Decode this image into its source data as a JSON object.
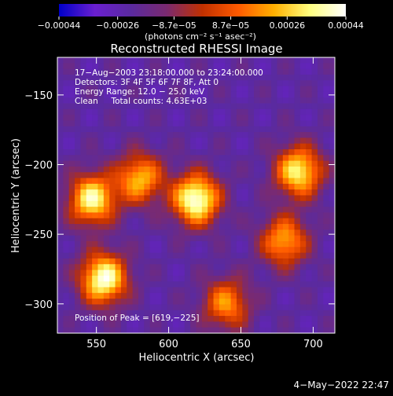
{
  "chart_data": {
    "type": "heatmap",
    "title": "Reconstructed RHESSI Image",
    "xlabel": "Heliocentric X (arcsec)",
    "ylabel": "Heliocentric Y (arcsec)",
    "xlim": [
      523,
      715
    ],
    "ylim": [
      -321,
      -123
    ],
    "x_ticks": [
      550,
      600,
      650,
      700
    ],
    "x_tick_labels": [
      "550",
      "600",
      "650",
      "700"
    ],
    "y_ticks": [
      -150,
      -200,
      -250,
      -300
    ],
    "y_tick_labels": [
      "−150",
      "−200",
      "−250",
      "−300"
    ],
    "colorbar": {
      "min": -0.00044,
      "max": 0.00044,
      "ticks": [
        -0.00044,
        -0.00026,
        -8.7e-05,
        8.7e-05,
        0.00026,
        0.00044
      ],
      "tick_labels": [
        "−0.00044",
        "−0.00026",
        "−8.7e−05",
        "8.7e−05",
        "0.00026",
        "0.00044"
      ],
      "unit_label": "(photons cm⁻² s⁻¹ asec⁻²)",
      "colormap": [
        "#0000c8",
        "#6a1fd0",
        "#5a2aa0",
        "#7a2a70",
        "#c03000",
        "#ff5a00",
        "#ffb000",
        "#ffff80",
        "#ffffff"
      ]
    },
    "annotations": [
      "17−Aug−2003 23:18:00.000 to 23:24:00.000",
      "Detectors: 3F 4F 5F 6F 7F 8F, Att 0",
      "Energy Range: 12.0 − 25.0 keV",
      "Clean     Total counts: 4.63E+03",
      "Position of Peak = [619,−225]"
    ],
    "peak_position": [
      619,
      -225
    ],
    "sources": [
      {
        "x": 619,
        "y": -225,
        "peak": 0.00044
      },
      {
        "x": 555,
        "y": -282,
        "peak": 0.00042
      },
      {
        "x": 547,
        "y": -225,
        "peak": 0.00036
      },
      {
        "x": 690,
        "y": -205,
        "peak": 0.00034
      },
      {
        "x": 680,
        "y": -255,
        "peak": 0.00022
      },
      {
        "x": 580,
        "y": -210,
        "peak": 0.00024
      },
      {
        "x": 640,
        "y": -300,
        "peak": 0.00018
      }
    ],
    "background": -0.00022
  },
  "footer": {
    "date": "4−May−2022 22:47"
  }
}
